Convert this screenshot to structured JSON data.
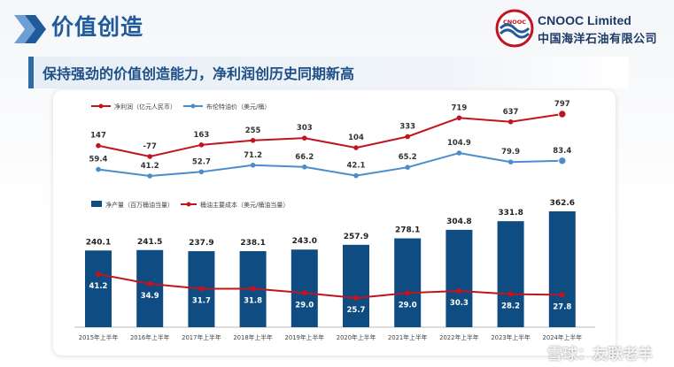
{
  "header": {
    "title": "价值创造",
    "brand_en": "CNOOC Limited",
    "brand_cn": "中国海洋石油有限公司",
    "brand_emblem": "CNOOC",
    "subtitle": "保持强劲的价值创造能力，净利润创历史同期新高"
  },
  "colors": {
    "brand_blue": "#1f5a9a",
    "net_profit": "#c0151e",
    "brent": "#4a8ccc",
    "production": "#0f4c81",
    "cost": "#c0151e"
  },
  "watermark": "雪球：友联老羊",
  "chart_data": [
    {
      "type": "line",
      "x": [
        "2015年上半年",
        "2016年上半年",
        "2017年上半年",
        "2018年上半年",
        "2019年上半年",
        "2020年上半年",
        "2021年上半年",
        "2022年上半年",
        "2023年上半年",
        "2024年上半年"
      ],
      "series": [
        {
          "name": "净利润（亿元人民币）",
          "values": [
            147,
            -77,
            163,
            255,
            303,
            104,
            333,
            719,
            637,
            797
          ]
        },
        {
          "name": "布伦特油价（美元/桶）",
          "values": [
            59.4,
            41.2,
            52.7,
            71.2,
            66.2,
            42.1,
            65.2,
            104.9,
            79.9,
            83.4
          ]
        }
      ],
      "legend": "top-left",
      "grid": false
    },
    {
      "type": "bar",
      "categories": [
        "2015年上半年",
        "2016年上半年",
        "2017年上半年",
        "2018年上半年",
        "2019年上半年",
        "2020年上半年",
        "2021年上半年",
        "2022年上半年",
        "2023年上半年",
        "2024年上半年"
      ],
      "series": [
        {
          "name": "净产量（百万桶油当量）",
          "values": [
            240.1,
            241.5,
            237.9,
            238.1,
            243.0,
            257.9,
            278.1,
            304.8,
            331.8,
            362.6
          ],
          "labels": [
            "240.1",
            "241.5",
            "237.9",
            "238.1",
            "243.0",
            "257.9",
            "278.1",
            "304.8",
            "331.8",
            "362.6"
          ]
        },
        {
          "name": "桶油主要成本（美元/桶油当量）",
          "type": "line",
          "values": [
            41.2,
            34.9,
            31.7,
            31.8,
            29.0,
            25.7,
            29.0,
            30.3,
            28.2,
            27.8
          ],
          "labels": [
            "41.2",
            "34.9",
            "31.7",
            "31.8",
            "29.0",
            "25.7",
            "29.0",
            "30.3",
            "28.2",
            "27.8"
          ]
        }
      ],
      "legend": "top-left",
      "grid": false
    }
  ]
}
